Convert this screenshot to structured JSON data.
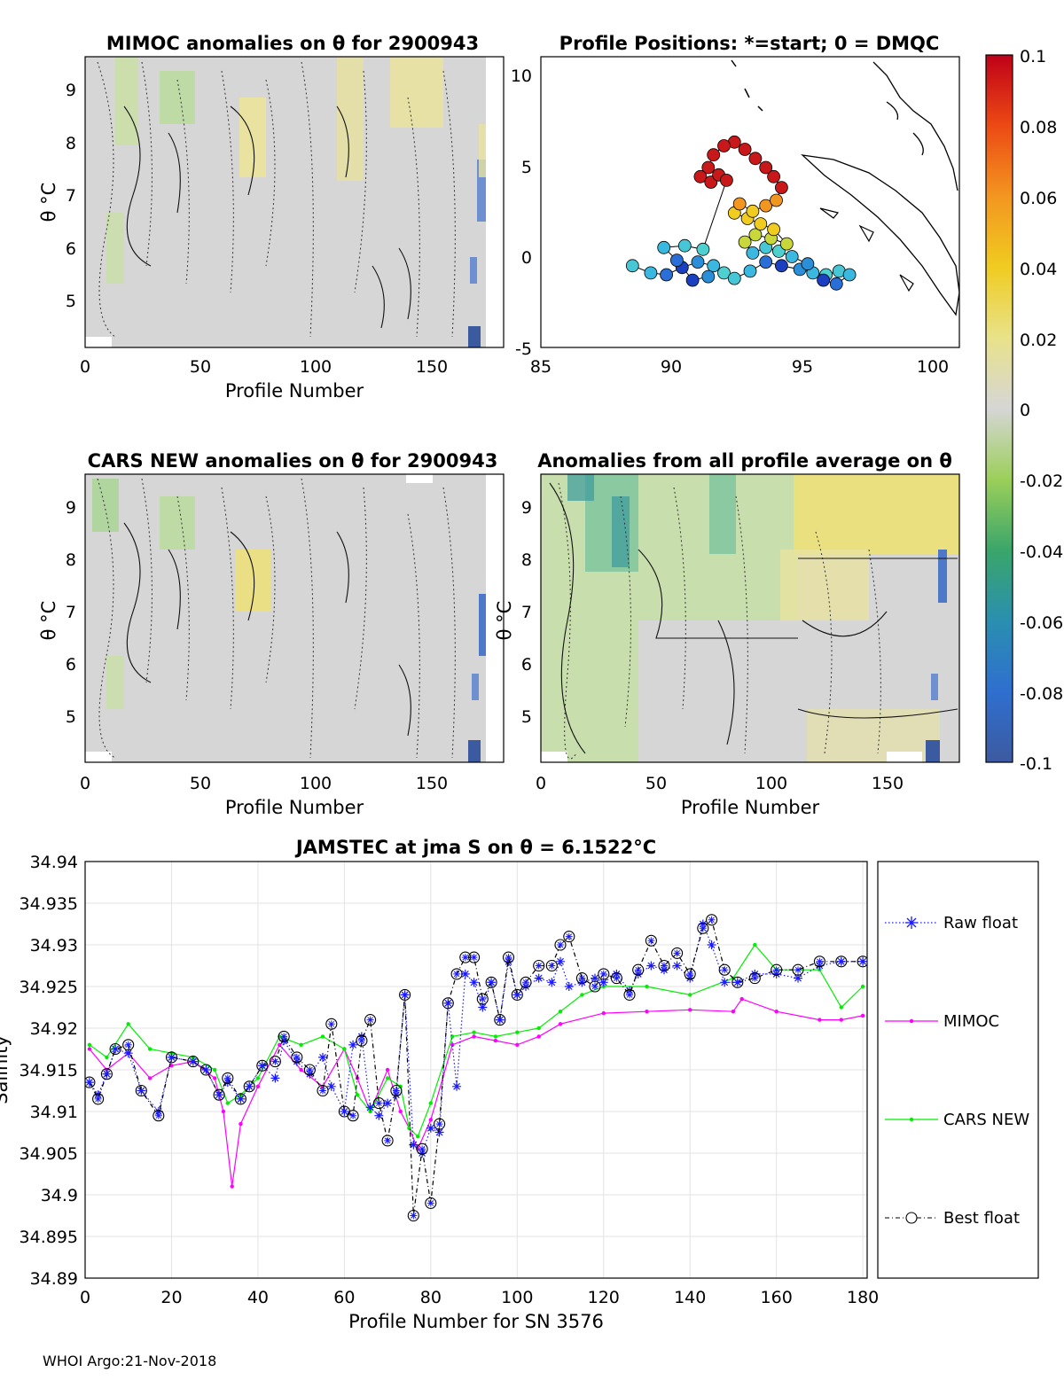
{
  "footer": "WHOI Argo:21-Nov-2018",
  "colors": {
    "raw_float": "#1a1aff",
    "mimoc": "#ff00ff",
    "cars_new": "#00ee00",
    "best_float": "#000000",
    "background_field": "#d6d6d6"
  },
  "panels": {
    "mimoc": {
      "title": "MIMOC anomalies on θ  for 2900943",
      "ylabel": "θ °C",
      "xlabel": "Profile Number",
      "xticks": [
        "0",
        "50",
        "100",
        "150"
      ],
      "yticks": [
        "5",
        "6",
        "7",
        "8",
        "9"
      ]
    },
    "positions": {
      "title": "Profile Positions: *=start; 0 = DMQC",
      "xticks": [
        "85",
        "90",
        "95",
        "100"
      ],
      "yticks": [
        "-5",
        "0",
        "5",
        "10"
      ]
    },
    "cars": {
      "title": "CARS NEW anomalies on θ for 2900943",
      "ylabel": "θ °C",
      "xlabel": "Profile Number",
      "xticks": [
        "0",
        "50",
        "100",
        "150"
      ],
      "yticks": [
        "5",
        "6",
        "7",
        "8",
        "9"
      ]
    },
    "allavg": {
      "title": "Anomalies from all profile average on θ",
      "ylabel": "θ °C",
      "xlabel": "Profile Number",
      "xticks": [
        "0",
        "50",
        "100",
        "150"
      ],
      "yticks": [
        "5",
        "6",
        "7",
        "8",
        "9"
      ]
    }
  },
  "colorbar": {
    "ticks": [
      "0.1",
      "0.08",
      "0.06",
      "0.04",
      "0.02",
      "0",
      "-0.02",
      "-0.04",
      "-0.06",
      "-0.08",
      "-0.1"
    ],
    "range": [
      -0.1,
      0.1
    ]
  },
  "chart_data": [
    {
      "type": "heatmap",
      "title": "MIMOC anomalies on θ  for 2900943",
      "xlabel": "Profile Number",
      "ylabel": "θ °C",
      "xlim": [
        0,
        181
      ],
      "ylim": [
        4.15,
        9.6
      ],
      "clim": [
        -0.1,
        0.1
      ]
    },
    {
      "type": "scatter",
      "title": "Profile Positions: *=start; 0 = DMQC",
      "xlim": [
        85,
        101
      ],
      "ylim": [
        -5,
        11
      ],
      "track": [
        [
          88.5,
          -0.5
        ],
        [
          89.2,
          -0.9
        ],
        [
          89.8,
          -1.0
        ],
        [
          90.4,
          -0.6
        ],
        [
          91.0,
          -0.3
        ],
        [
          91.6,
          -0.5
        ],
        [
          92.0,
          -0.9
        ],
        [
          92.4,
          -1.2
        ],
        [
          93.0,
          -0.8
        ],
        [
          93.6,
          -0.3
        ],
        [
          94.2,
          -0.5
        ],
        [
          94.9,
          -0.7
        ],
        [
          95.4,
          -0.9
        ],
        [
          95.9,
          -1.0
        ],
        [
          96.4,
          -0.8
        ],
        [
          96.8,
          -1.0
        ],
        [
          96.3,
          -1.5
        ],
        [
          95.8,
          -1.3
        ],
        [
          95.2,
          -0.4
        ],
        [
          94.6,
          0.0
        ],
        [
          94.1,
          0.3
        ],
        [
          93.6,
          0.5
        ],
        [
          93.1,
          0.2
        ],
        [
          92.8,
          0.8
        ],
        [
          93.2,
          1.2
        ],
        [
          93.8,
          1.0
        ],
        [
          94.4,
          0.7
        ],
        [
          93.9,
          1.5
        ],
        [
          93.4,
          1.8
        ],
        [
          92.9,
          2.1
        ],
        [
          92.4,
          2.4
        ],
        [
          92.6,
          2.9
        ],
        [
          93.1,
          2.5
        ],
        [
          93.6,
          2.8
        ],
        [
          94.0,
          3.1
        ],
        [
          94.2,
          3.8
        ],
        [
          93.9,
          4.4
        ],
        [
          93.6,
          4.9
        ],
        [
          93.2,
          5.4
        ],
        [
          92.8,
          5.9
        ],
        [
          92.4,
          6.3
        ],
        [
          92.0,
          6.1
        ],
        [
          91.6,
          5.6
        ],
        [
          91.4,
          4.9
        ],
        [
          91.1,
          4.4
        ],
        [
          91.5,
          4.1
        ],
        [
          91.8,
          4.5
        ],
        [
          92.1,
          4.2
        ],
        [
          91.2,
          0.4
        ],
        [
          90.5,
          0.6
        ],
        [
          89.7,
          0.5
        ],
        [
          90.2,
          -0.2
        ],
        [
          90.8,
          -1.3
        ],
        [
          91.4,
          -1.1
        ]
      ]
    },
    {
      "type": "heatmap",
      "title": "CARS NEW anomalies on θ for 2900943",
      "xlabel": "Profile Number",
      "ylabel": "θ °C",
      "xlim": [
        0,
        181
      ],
      "ylim": [
        4.15,
        9.6
      ],
      "clim": [
        -0.1,
        0.1
      ]
    },
    {
      "type": "heatmap",
      "title": "Anomalies from all profile average on θ",
      "xlabel": "Profile Number",
      "ylabel": "θ °C",
      "xlim": [
        0,
        181
      ],
      "ylim": [
        4.15,
        9.6
      ],
      "clim": [
        -0.1,
        0.1
      ]
    },
    {
      "type": "line",
      "title": "JAMSTEC at jma S on θ = 6.1522°C",
      "xlabel": "Profile Number for SN 3576",
      "ylabel": "Salinity",
      "xlim": [
        0,
        181
      ],
      "ylim": [
        34.89,
        34.94
      ],
      "yticks": [
        "34.94",
        "34.935",
        "34.93",
        "34.925",
        "34.92",
        "34.915",
        "34.91",
        "34.905",
        "34.9",
        "34.895",
        "34.89"
      ],
      "xticks": [
        "0",
        "20",
        "40",
        "60",
        "80",
        "100",
        "120",
        "140",
        "160",
        "180"
      ],
      "grid": true,
      "legend": [
        "Raw float",
        "MIMOC",
        "CARS NEW",
        "Best float"
      ],
      "series": [
        {
          "name": "MIMOC",
          "x": [
            1,
            5,
            10,
            15,
            20,
            25,
            30,
            32,
            34,
            36,
            40,
            45,
            50,
            55,
            60,
            63,
            66,
            70,
            73,
            75,
            77,
            80,
            85,
            90,
            95,
            100,
            105,
            110,
            120,
            130,
            140,
            150,
            152,
            160,
            170,
            175,
            180
          ],
          "y": [
            34.9175,
            34.915,
            34.917,
            34.914,
            34.9155,
            34.916,
            34.914,
            34.91,
            34.901,
            34.9085,
            34.913,
            34.918,
            34.915,
            34.913,
            34.9175,
            34.914,
            34.91,
            34.915,
            34.91,
            34.908,
            34.9055,
            34.909,
            34.918,
            34.919,
            34.9185,
            34.918,
            34.919,
            34.9205,
            34.9218,
            34.922,
            34.9222,
            34.922,
            34.9235,
            34.922,
            34.921,
            34.921,
            34.9215
          ]
        },
        {
          "name": "CARS NEW",
          "x": [
            1,
            5,
            10,
            15,
            20,
            25,
            30,
            33,
            36,
            40,
            45,
            50,
            55,
            60,
            63,
            66,
            70,
            73,
            75,
            77,
            80,
            85,
            90,
            95,
            100,
            105,
            110,
            115,
            120,
            130,
            140,
            150,
            155,
            160,
            170,
            175,
            180
          ],
          "y": [
            34.918,
            34.9165,
            34.9205,
            34.9175,
            34.917,
            34.9165,
            34.915,
            34.911,
            34.912,
            34.914,
            34.919,
            34.918,
            34.919,
            34.9175,
            34.912,
            34.91,
            34.914,
            34.913,
            34.908,
            34.907,
            34.911,
            34.919,
            34.9195,
            34.919,
            34.9195,
            34.92,
            34.922,
            34.924,
            34.925,
            34.925,
            34.924,
            34.926,
            34.93,
            34.927,
            34.927,
            34.9225,
            34.925
          ]
        },
        {
          "name": "Raw float",
          "x": [
            1,
            3,
            5,
            7,
            10,
            13,
            17,
            20,
            25,
            28,
            31,
            33,
            36,
            38,
            41,
            44,
            46,
            49,
            52,
            55,
            57,
            60,
            62,
            64,
            66,
            68,
            70,
            72,
            74,
            76,
            78,
            80,
            82,
            84,
            86,
            88,
            90,
            92,
            94,
            96,
            98,
            100,
            102,
            105,
            108,
            110,
            112,
            115,
            118,
            120,
            123,
            126,
            128,
            131,
            134,
            137,
            140,
            143,
            145,
            148,
            151,
            155,
            160,
            165,
            170,
            175,
            180
          ],
          "y": [
            34.9135,
            34.912,
            34.9145,
            34.9175,
            34.917,
            34.9125,
            34.91,
            34.9165,
            34.916,
            34.915,
            34.912,
            34.9135,
            34.9115,
            34.913,
            34.9155,
            34.914,
            34.9185,
            34.916,
            34.9145,
            34.9165,
            34.913,
            34.91,
            34.918,
            34.919,
            34.9105,
            34.9095,
            34.911,
            34.912,
            34.924,
            34.906,
            34.905,
            34.908,
            34.9075,
            34.923,
            34.913,
            34.9265,
            34.9255,
            34.9225,
            34.9255,
            34.921,
            34.928,
            34.924,
            34.925,
            34.926,
            34.9255,
            34.928,
            34.925,
            34.9255,
            34.926,
            34.9255,
            34.9265,
            34.9245,
            34.9265,
            34.9275,
            34.927,
            34.9275,
            34.926,
            34.9325,
            34.93,
            34.9255,
            34.9255,
            34.9265,
            34.9265,
            34.926,
            34.9275,
            34.928,
            34.928
          ]
        },
        {
          "name": "Best float",
          "x": [
            1,
            3,
            5,
            7,
            10,
            13,
            17,
            20,
            25,
            28,
            31,
            33,
            36,
            38,
            41,
            44,
            46,
            49,
            52,
            55,
            57,
            60,
            62,
            64,
            66,
            68,
            70,
            72,
            74,
            76,
            78,
            80,
            82,
            84,
            86,
            88,
            90,
            92,
            94,
            96,
            98,
            100,
            102,
            105,
            108,
            110,
            112,
            115,
            118,
            120,
            123,
            126,
            128,
            131,
            134,
            137,
            140,
            143,
            145,
            148,
            151,
            155,
            160,
            165,
            170,
            175,
            180
          ],
          "y": [
            34.9135,
            34.9115,
            34.9145,
            34.9175,
            34.918,
            34.9125,
            34.9095,
            34.9165,
            34.916,
            34.915,
            34.912,
            34.914,
            34.9115,
            34.913,
            34.9155,
            34.916,
            34.919,
            34.9165,
            34.915,
            34.9125,
            34.9205,
            34.91,
            34.9095,
            34.9185,
            34.921,
            34.911,
            34.9065,
            34.9125,
            34.924,
            34.8975,
            34.9055,
            34.899,
            34.9085,
            34.923,
            34.9265,
            34.9285,
            34.9285,
            34.9235,
            34.9255,
            34.921,
            34.9285,
            34.924,
            34.9255,
            34.9275,
            34.9275,
            34.93,
            34.931,
            34.926,
            34.925,
            34.9265,
            34.926,
            34.924,
            34.927,
            34.9305,
            34.9275,
            34.929,
            34.9265,
            34.932,
            34.933,
            34.927,
            34.9255,
            34.926,
            34.927,
            34.927,
            34.928,
            34.928,
            34.928
          ]
        }
      ]
    }
  ]
}
